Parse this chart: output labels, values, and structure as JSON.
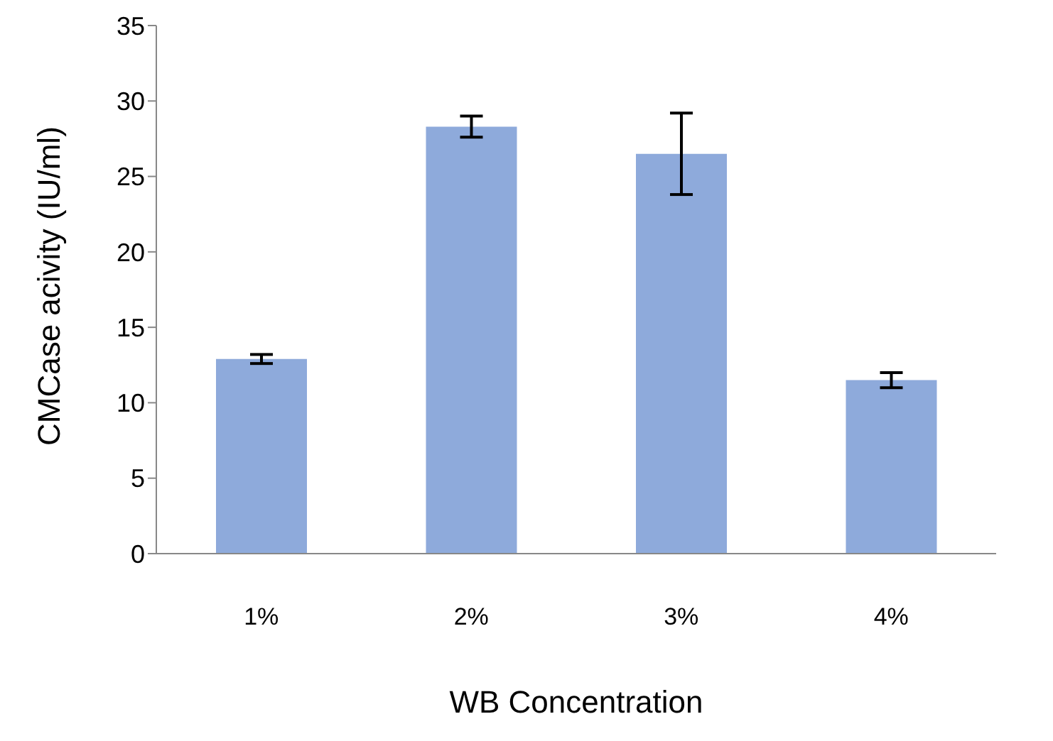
{
  "chart_data": {
    "type": "bar",
    "xlabel": "WB Concentration",
    "ylabel": "CMCase acivity (IU/ml)",
    "categories": [
      "1%",
      "2%",
      "3%",
      "4%"
    ],
    "values": [
      12.9,
      28.3,
      26.5,
      11.5
    ],
    "errors": [
      0.3,
      0.7,
      2.7,
      0.5
    ],
    "color": "#8eaadb",
    "ylim": [
      0,
      35
    ],
    "yticks": [
      0,
      5,
      10,
      15,
      20,
      25,
      30,
      35
    ],
    "grid": false,
    "legend": false
  }
}
